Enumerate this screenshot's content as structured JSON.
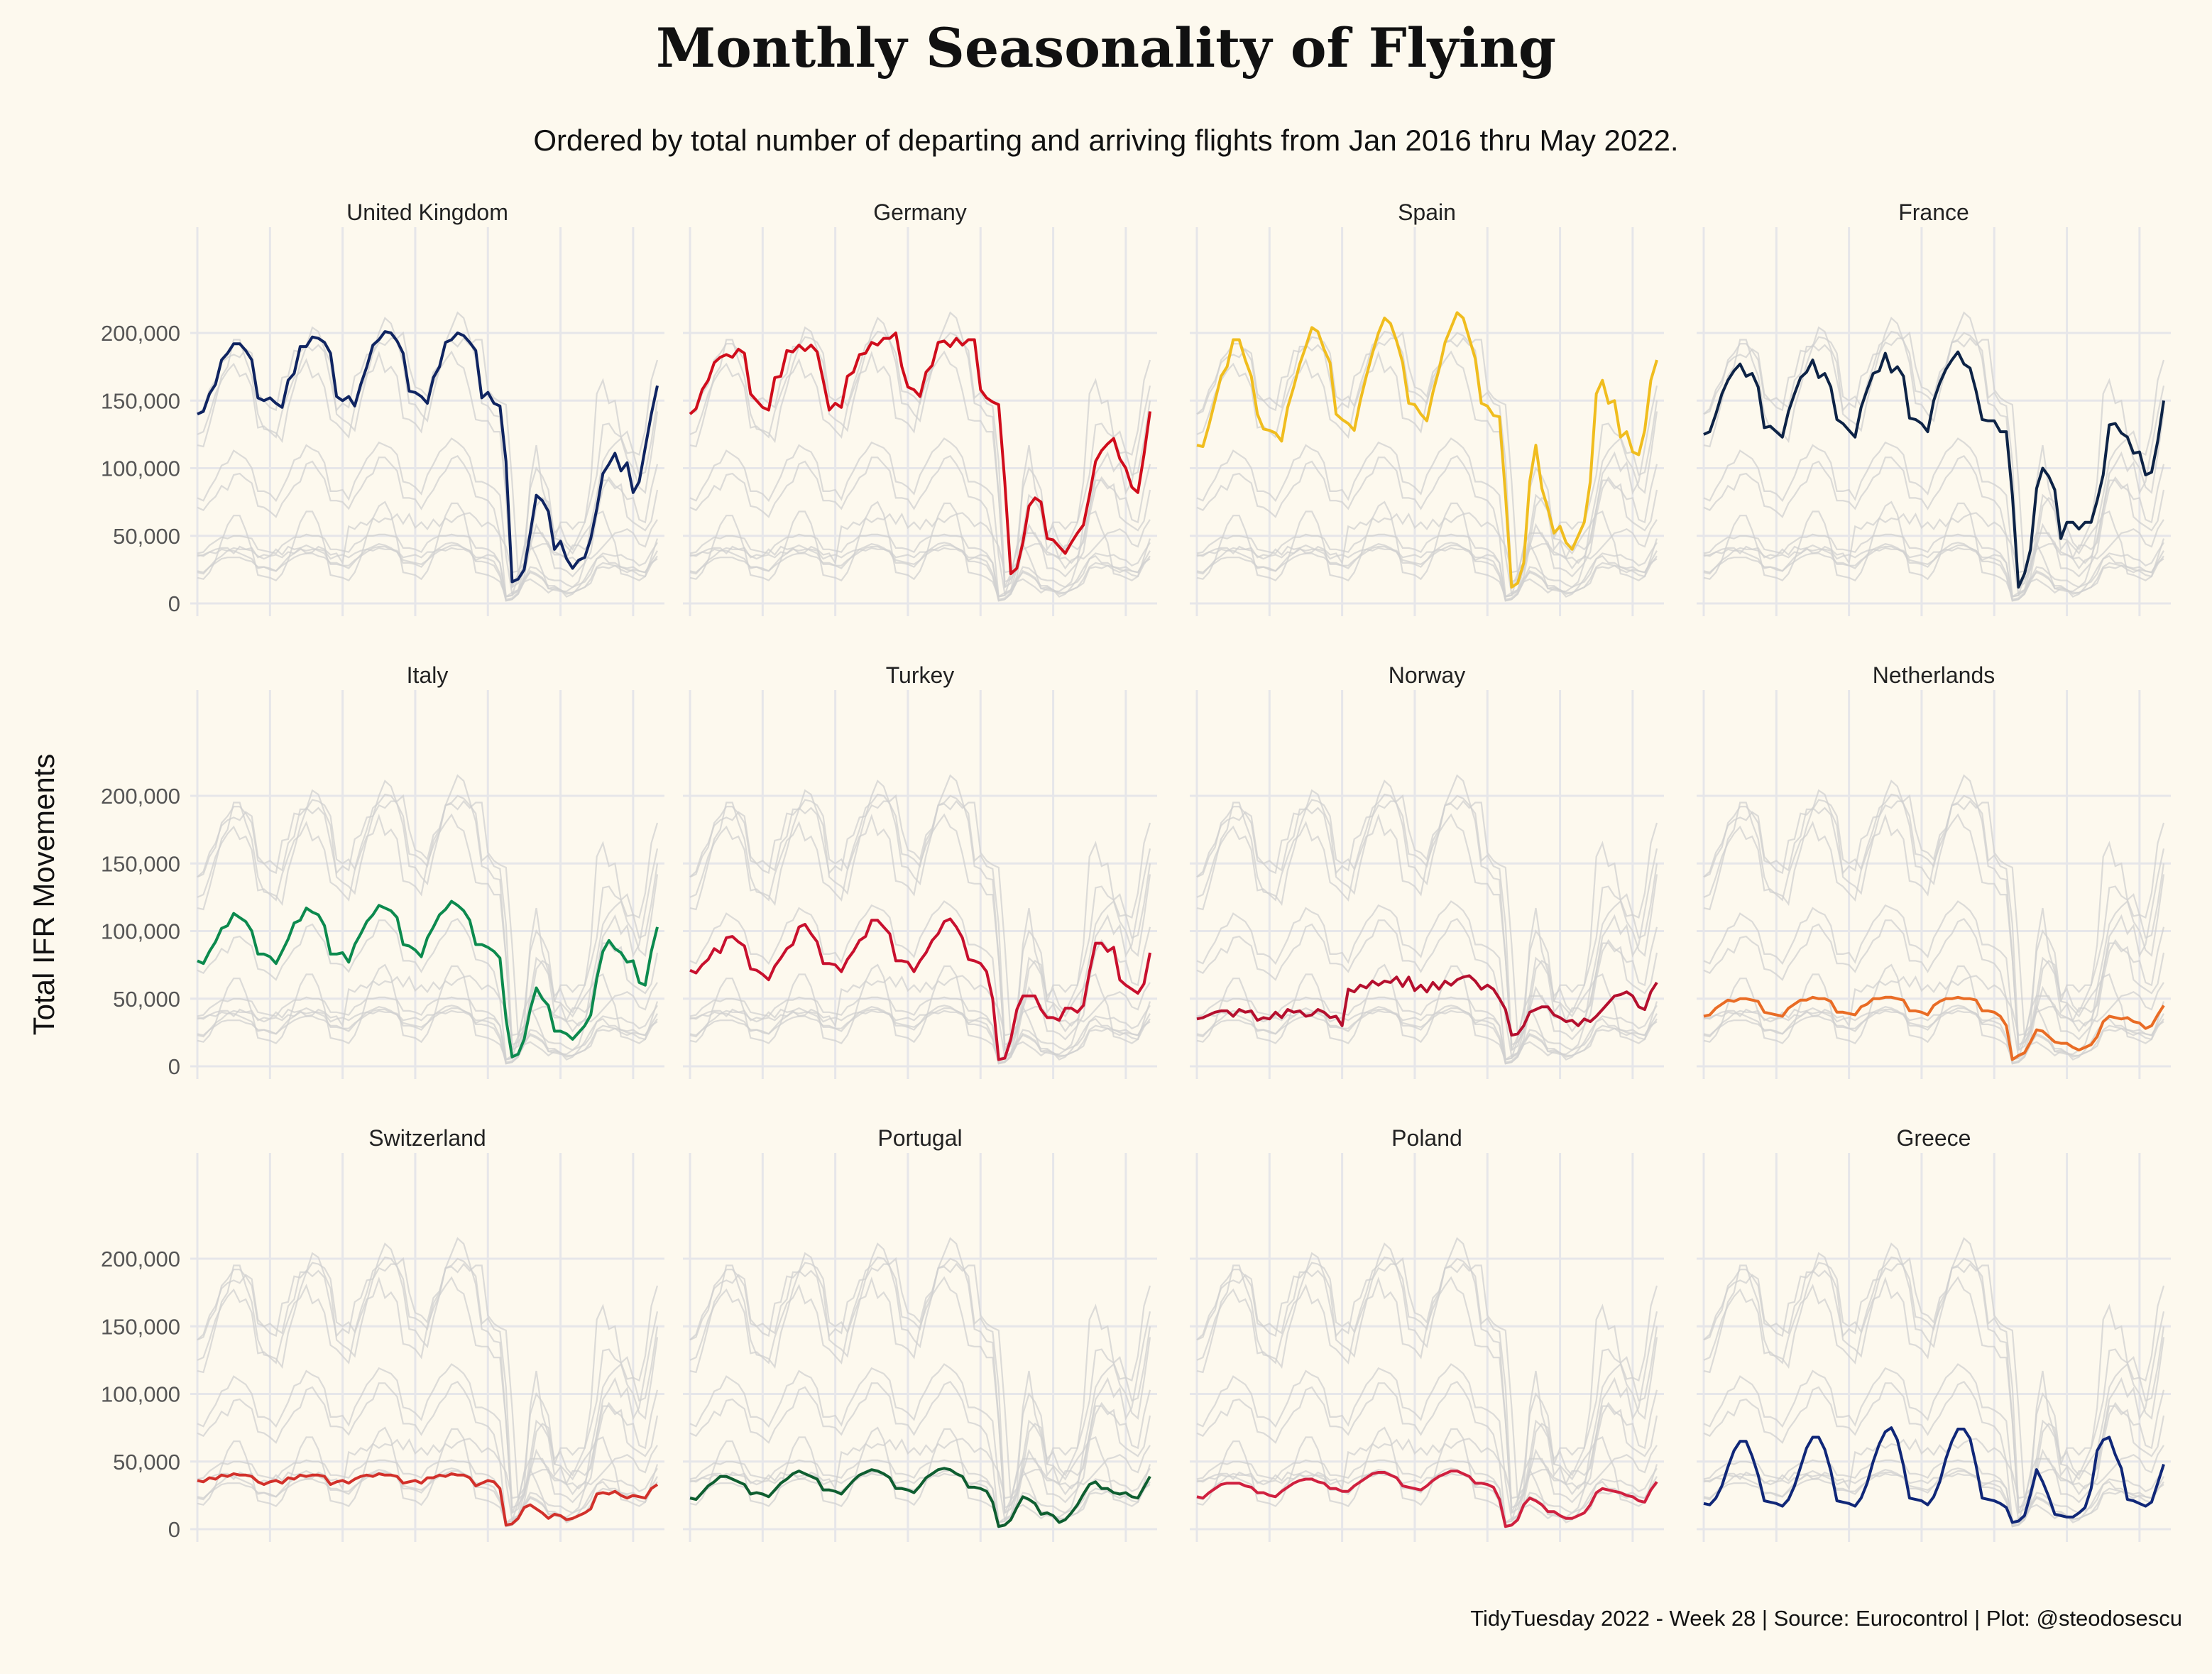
{
  "title": "Monthly Seasonality of Flying",
  "subtitle": "Ordered by total number of departing and arriving flights from Jan 2016 thru May 2022.",
  "caption": "TidyTuesday 2022 - Week 28 | Source: Eurocontrol | Plot: @steodosescu",
  "y_axis_label": "Total IFR Movements",
  "y_tick_labels": [
    "0",
    "50,000",
    "100,000",
    "150,000",
    "200,000"
  ],
  "colors": {
    "background": "#fdf9ee",
    "grid": "#e6e6e9",
    "ghost_line": "#d0d0d0"
  },
  "chart_data": {
    "type": "line",
    "facet": "small-multiples, 4 columns x 3 rows, shared axes",
    "x": "month index, Jan 2016 to May 2022 (77 months)",
    "n_months": 77,
    "ylim": [
      0,
      220000
    ],
    "yticks": [
      0,
      50000,
      100000,
      150000,
      200000
    ],
    "x_tick_labels_shown": false,
    "grid": true,
    "background_series": "all countries drawn in light grey in every panel",
    "series": [
      {
        "name": "United Kingdom",
        "color": "#0f2461",
        "values": [
          140000,
          142000,
          155000,
          162000,
          180000,
          185000,
          192000,
          192000,
          187000,
          180000,
          152000,
          150000,
          152000,
          148000,
          145000,
          165000,
          170000,
          190000,
          190000,
          197000,
          196000,
          193000,
          185000,
          153000,
          150000,
          153000,
          146000,
          162000,
          175000,
          191000,
          195000,
          201000,
          200000,
          194000,
          185000,
          157000,
          156000,
          153000,
          148000,
          167000,
          175000,
          193000,
          195000,
          200000,
          198000,
          193000,
          187000,
          152000,
          156000,
          148000,
          146000,
          105000,
          16000,
          18000,
          25000,
          52000,
          80000,
          76000,
          68000,
          40000,
          46000,
          33000,
          26000,
          32000,
          34000,
          48000,
          70000,
          96000,
          103000,
          111000,
          98000,
          104000,
          82000,
          90000,
          115000,
          140000,
          161000
        ]
      },
      {
        "name": "Germany",
        "color": "#d00d1c",
        "values": [
          140000,
          144000,
          158000,
          165000,
          178000,
          182000,
          184000,
          182000,
          188000,
          185000,
          155000,
          150000,
          145000,
          143000,
          167000,
          168000,
          187000,
          186000,
          191000,
          187000,
          191000,
          186000,
          165000,
          143000,
          148000,
          145000,
          168000,
          171000,
          184000,
          185000,
          193000,
          191000,
          196000,
          196000,
          200000,
          175000,
          160000,
          158000,
          153000,
          171000,
          176000,
          193000,
          194000,
          190000,
          196000,
          191000,
          195000,
          195000,
          158000,
          152000,
          149000,
          147000,
          90000,
          22000,
          26000,
          45000,
          72000,
          78000,
          75000,
          48000,
          47000,
          42000,
          37000,
          45000,
          52000,
          58000,
          80000,
          105000,
          113000,
          118000,
          122000,
          107000,
          100000,
          86000,
          82000,
          110000,
          142000
        ]
      },
      {
        "name": "Spain",
        "color": "#f0bd1e",
        "values": [
          117000,
          116000,
          132000,
          150000,
          168000,
          175000,
          195000,
          195000,
          180000,
          168000,
          140000,
          129000,
          128000,
          126000,
          120000,
          145000,
          160000,
          177000,
          190000,
          204000,
          201000,
          188000,
          178000,
          140000,
          136000,
          133000,
          128000,
          150000,
          168000,
          185000,
          200000,
          211000,
          207000,
          194000,
          178000,
          148000,
          147000,
          140000,
          135000,
          156000,
          173000,
          193000,
          204000,
          215000,
          211000,
          196000,
          181000,
          148000,
          146000,
          139000,
          138000,
          80000,
          12000,
          15000,
          30000,
          90000,
          117000,
          85000,
          70000,
          52000,
          57000,
          45000,
          40000,
          50000,
          60000,
          90000,
          155000,
          165000,
          148000,
          150000,
          123000,
          127000,
          112000,
          110000,
          128000,
          165000,
          180000
        ]
      },
      {
        "name": "France",
        "color": "#0d2346",
        "values": [
          125000,
          127000,
          140000,
          155000,
          165000,
          172000,
          177000,
          168000,
          170000,
          160000,
          130000,
          131000,
          127000,
          123000,
          142000,
          155000,
          167000,
          171000,
          180000,
          167000,
          170000,
          160000,
          136000,
          133000,
          128000,
          123000,
          145000,
          158000,
          170000,
          172000,
          185000,
          171000,
          175000,
          168000,
          137000,
          136000,
          133000,
          127000,
          150000,
          163000,
          173000,
          180000,
          186000,
          177000,
          174000,
          157000,
          136000,
          135000,
          135000,
          127000,
          127000,
          80000,
          12000,
          22000,
          40000,
          85000,
          100000,
          94000,
          84000,
          48000,
          60000,
          60000,
          55000,
          60000,
          60000,
          76000,
          95000,
          132000,
          133000,
          126000,
          123000,
          111000,
          112000,
          95000,
          97000,
          120000,
          150000
        ]
      },
      {
        "name": "Italy",
        "color": "#0c8a4e",
        "values": [
          78000,
          76000,
          85000,
          92000,
          102000,
          104000,
          113000,
          110000,
          107000,
          100000,
          83000,
          83000,
          81000,
          76000,
          85000,
          94000,
          106000,
          108000,
          117000,
          114000,
          112000,
          104000,
          83000,
          83000,
          84000,
          77000,
          90000,
          98000,
          107000,
          112000,
          119000,
          117000,
          115000,
          110000,
          90000,
          89000,
          86000,
          81000,
          95000,
          103000,
          112000,
          116000,
          122000,
          119000,
          115000,
          108000,
          90000,
          90000,
          88000,
          85000,
          80000,
          35000,
          7000,
          9000,
          20000,
          42000,
          58000,
          50000,
          45000,
          26000,
          26000,
          24000,
          20000,
          25000,
          30000,
          38000,
          65000,
          85000,
          93000,
          87000,
          84000,
          77000,
          78000,
          62000,
          60000,
          85000,
          103000
        ]
      },
      {
        "name": "Turkey",
        "color": "#c8102e",
        "values": [
          71000,
          69000,
          75000,
          79000,
          87000,
          84000,
          95000,
          96000,
          92000,
          89000,
          72000,
          71000,
          68000,
          64000,
          74000,
          80000,
          87000,
          90000,
          103000,
          105000,
          98000,
          92000,
          76000,
          76000,
          75000,
          70000,
          79000,
          85000,
          93000,
          96000,
          108000,
          108000,
          103000,
          98000,
          78000,
          78000,
          77000,
          70000,
          78000,
          84000,
          93000,
          98000,
          107000,
          109000,
          103000,
          95000,
          79000,
          78000,
          76000,
          70000,
          50000,
          5000,
          6000,
          20000,
          42000,
          52000,
          52000,
          52000,
          42000,
          36000,
          36000,
          34000,
          43000,
          43000,
          40000,
          45000,
          70000,
          91000,
          91000,
          85000,
          88000,
          64000,
          60000,
          57000,
          54000,
          61000,
          84000
        ]
      },
      {
        "name": "Norway",
        "color": "#b50f2e",
        "values": [
          35000,
          36000,
          38000,
          40000,
          41000,
          41000,
          37000,
          42000,
          40000,
          41000,
          34000,
          36000,
          35000,
          40000,
          36000,
          42000,
          40000,
          41000,
          37000,
          38000,
          42000,
          40000,
          36000,
          37000,
          30000,
          57000,
          55000,
          60000,
          58000,
          63000,
          60000,
          63000,
          62000,
          66000,
          59000,
          66000,
          56000,
          60000,
          55000,
          62000,
          57000,
          63000,
          60000,
          64000,
          66000,
          67000,
          63000,
          57000,
          60000,
          57000,
          50000,
          42000,
          23000,
          24000,
          30000,
          40000,
          42000,
          44000,
          44000,
          38000,
          36000,
          33000,
          34000,
          30000,
          35000,
          33000,
          37000,
          42000,
          47000,
          52000,
          53000,
          55000,
          52000,
          44000,
          42000,
          55000,
          62000
        ]
      },
      {
        "name": "Netherlands",
        "color": "#e96c25",
        "values": [
          37000,
          38000,
          43000,
          46000,
          49000,
          48000,
          50000,
          50000,
          49000,
          48000,
          40000,
          39000,
          38000,
          37000,
          43000,
          46000,
          49000,
          49000,
          51000,
          50000,
          50000,
          48000,
          40000,
          40000,
          39000,
          38000,
          44000,
          46000,
          50000,
          50000,
          51000,
          51000,
          50000,
          49000,
          41000,
          41000,
          40000,
          38000,
          45000,
          48000,
          50000,
          50000,
          51000,
          50000,
          50000,
          49000,
          41000,
          41000,
          40000,
          37000,
          30000,
          5000,
          8000,
          10000,
          18000,
          27000,
          26000,
          22000,
          18000,
          17000,
          17000,
          14000,
          12000,
          14000,
          16000,
          22000,
          33000,
          37000,
          36000,
          35000,
          36000,
          33000,
          32000,
          28000,
          30000,
          38000,
          45000
        ]
      },
      {
        "name": "Switzerland",
        "color": "#d2302a",
        "values": [
          36000,
          35000,
          38000,
          37000,
          40000,
          39000,
          41000,
          40000,
          40000,
          39000,
          35000,
          33000,
          35000,
          36000,
          34000,
          38000,
          37000,
          40000,
          39000,
          40000,
          40000,
          39000,
          33000,
          35000,
          36000,
          34000,
          37000,
          39000,
          40000,
          39000,
          41000,
          40000,
          40000,
          39000,
          34000,
          35000,
          36000,
          34000,
          38000,
          38000,
          40000,
          39000,
          41000,
          40000,
          40000,
          38000,
          32000,
          34000,
          36000,
          35000,
          30000,
          3000,
          4000,
          8000,
          16000,
          18000,
          15000,
          12000,
          8000,
          11000,
          10000,
          7000,
          8000,
          10000,
          12000,
          15000,
          26000,
          27000,
          26000,
          28000,
          25000,
          23000,
          25000,
          24000,
          23000,
          30000,
          33000
        ]
      },
      {
        "name": "Portugal",
        "color": "#0e5e30",
        "values": [
          23000,
          22000,
          27000,
          32000,
          35000,
          39000,
          39000,
          37000,
          35000,
          33000,
          26000,
          27000,
          26000,
          24000,
          29000,
          34000,
          37000,
          41000,
          43000,
          41000,
          39000,
          37000,
          29000,
          29000,
          28000,
          26000,
          31000,
          36000,
          40000,
          42000,
          44000,
          43000,
          41000,
          38000,
          30000,
          30000,
          29000,
          27000,
          32000,
          38000,
          41000,
          44000,
          45000,
          44000,
          41000,
          39000,
          31000,
          31000,
          30000,
          28000,
          20000,
          2000,
          3000,
          7000,
          16000,
          24000,
          22000,
          19000,
          11000,
          12000,
          10000,
          5000,
          7000,
          12000,
          18000,
          26000,
          33000,
          35000,
          30000,
          30000,
          27000,
          26000,
          27000,
          24000,
          23000,
          31000,
          39000
        ]
      },
      {
        "name": "Poland",
        "color": "#d0203f",
        "values": [
          24000,
          23000,
          27000,
          30000,
          33000,
          34000,
          34000,
          34000,
          32000,
          31000,
          27000,
          27000,
          25000,
          24000,
          28000,
          31000,
          34000,
          36000,
          37000,
          37000,
          35000,
          34000,
          30000,
          30000,
          28000,
          28000,
          32000,
          35000,
          38000,
          41000,
          42000,
          42000,
          40000,
          38000,
          32000,
          31000,
          30000,
          29000,
          32000,
          36000,
          39000,
          41000,
          43000,
          43000,
          41000,
          39000,
          34000,
          34000,
          33000,
          31000,
          22000,
          2000,
          3000,
          7000,
          18000,
          23000,
          21000,
          18000,
          13000,
          13000,
          10000,
          8000,
          8000,
          10000,
          12000,
          18000,
          27000,
          30000,
          29000,
          28000,
          27000,
          25000,
          24000,
          21000,
          20000,
          29000,
          35000
        ]
      },
      {
        "name": "Greece",
        "color": "#102778",
        "values": [
          19000,
          18000,
          23000,
          32000,
          46000,
          58000,
          65000,
          65000,
          54000,
          40000,
          21000,
          20000,
          19000,
          17000,
          22000,
          32000,
          46000,
          60000,
          68000,
          68000,
          59000,
          43000,
          21000,
          20000,
          19000,
          17000,
          23000,
          34000,
          50000,
          63000,
          72000,
          75000,
          66000,
          47000,
          23000,
          22000,
          21000,
          18000,
          24000,
          35000,
          52000,
          65000,
          74000,
          74000,
          67000,
          47000,
          23000,
          22000,
          21000,
          19000,
          16000,
          5000,
          6000,
          10000,
          26000,
          44000,
          35000,
          24000,
          11000,
          10000,
          9000,
          9000,
          12000,
          16000,
          30000,
          58000,
          66000,
          68000,
          55000,
          45000,
          22000,
          21000,
          19000,
          17000,
          20000,
          34000,
          48000
        ]
      }
    ]
  }
}
